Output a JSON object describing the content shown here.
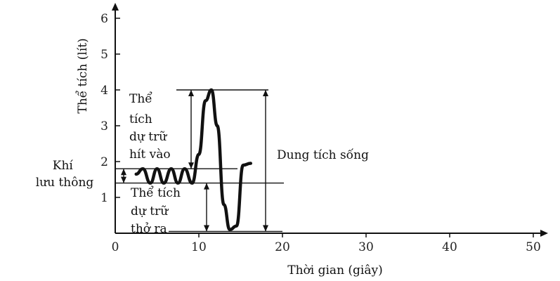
{
  "chart_data": {
    "type": "line",
    "xlabel": "Thời gian (giây)",
    "ylabel": "Thể tích (lít)",
    "x_ticks": [
      "0",
      "10",
      "20",
      "30",
      "40",
      "50"
    ],
    "y_ticks": [
      "1",
      "2",
      "3",
      "4",
      "5",
      "6"
    ],
    "xlim": [
      0,
      53
    ],
    "ylim": [
      0,
      6.3
    ],
    "series": [
      {
        "x": [
          2.5,
          3.3,
          4.2,
          5.0,
          5.8,
          6.7,
          7.5,
          8.3,
          9.2,
          10.0,
          10.8,
          11.5,
          12.2,
          13.0,
          13.7,
          14.5,
          15.3,
          16.2
        ],
        "y": [
          1.65,
          1.8,
          1.4,
          1.8,
          1.4,
          1.8,
          1.4,
          1.8,
          1.4,
          2.2,
          3.7,
          4.0,
          3.0,
          0.8,
          0.1,
          0.2,
          1.9,
          1.95
        ]
      }
    ],
    "levels": {
      "tidal_top": 1.8,
      "tidal_bottom": 1.4,
      "max": 4.0,
      "min": 0.05
    },
    "annotations": {
      "inspiratory_reserve": [
        "Thể",
        "tích",
        "dự trữ",
        "hít vào"
      ],
      "expiratory_reserve": [
        "Thể tích",
        "dự trữ",
        "thở ra"
      ],
      "tidal": [
        "Khí",
        "lưu thông"
      ],
      "vital_capacity": "Dung tích sống"
    },
    "grid": false
  }
}
